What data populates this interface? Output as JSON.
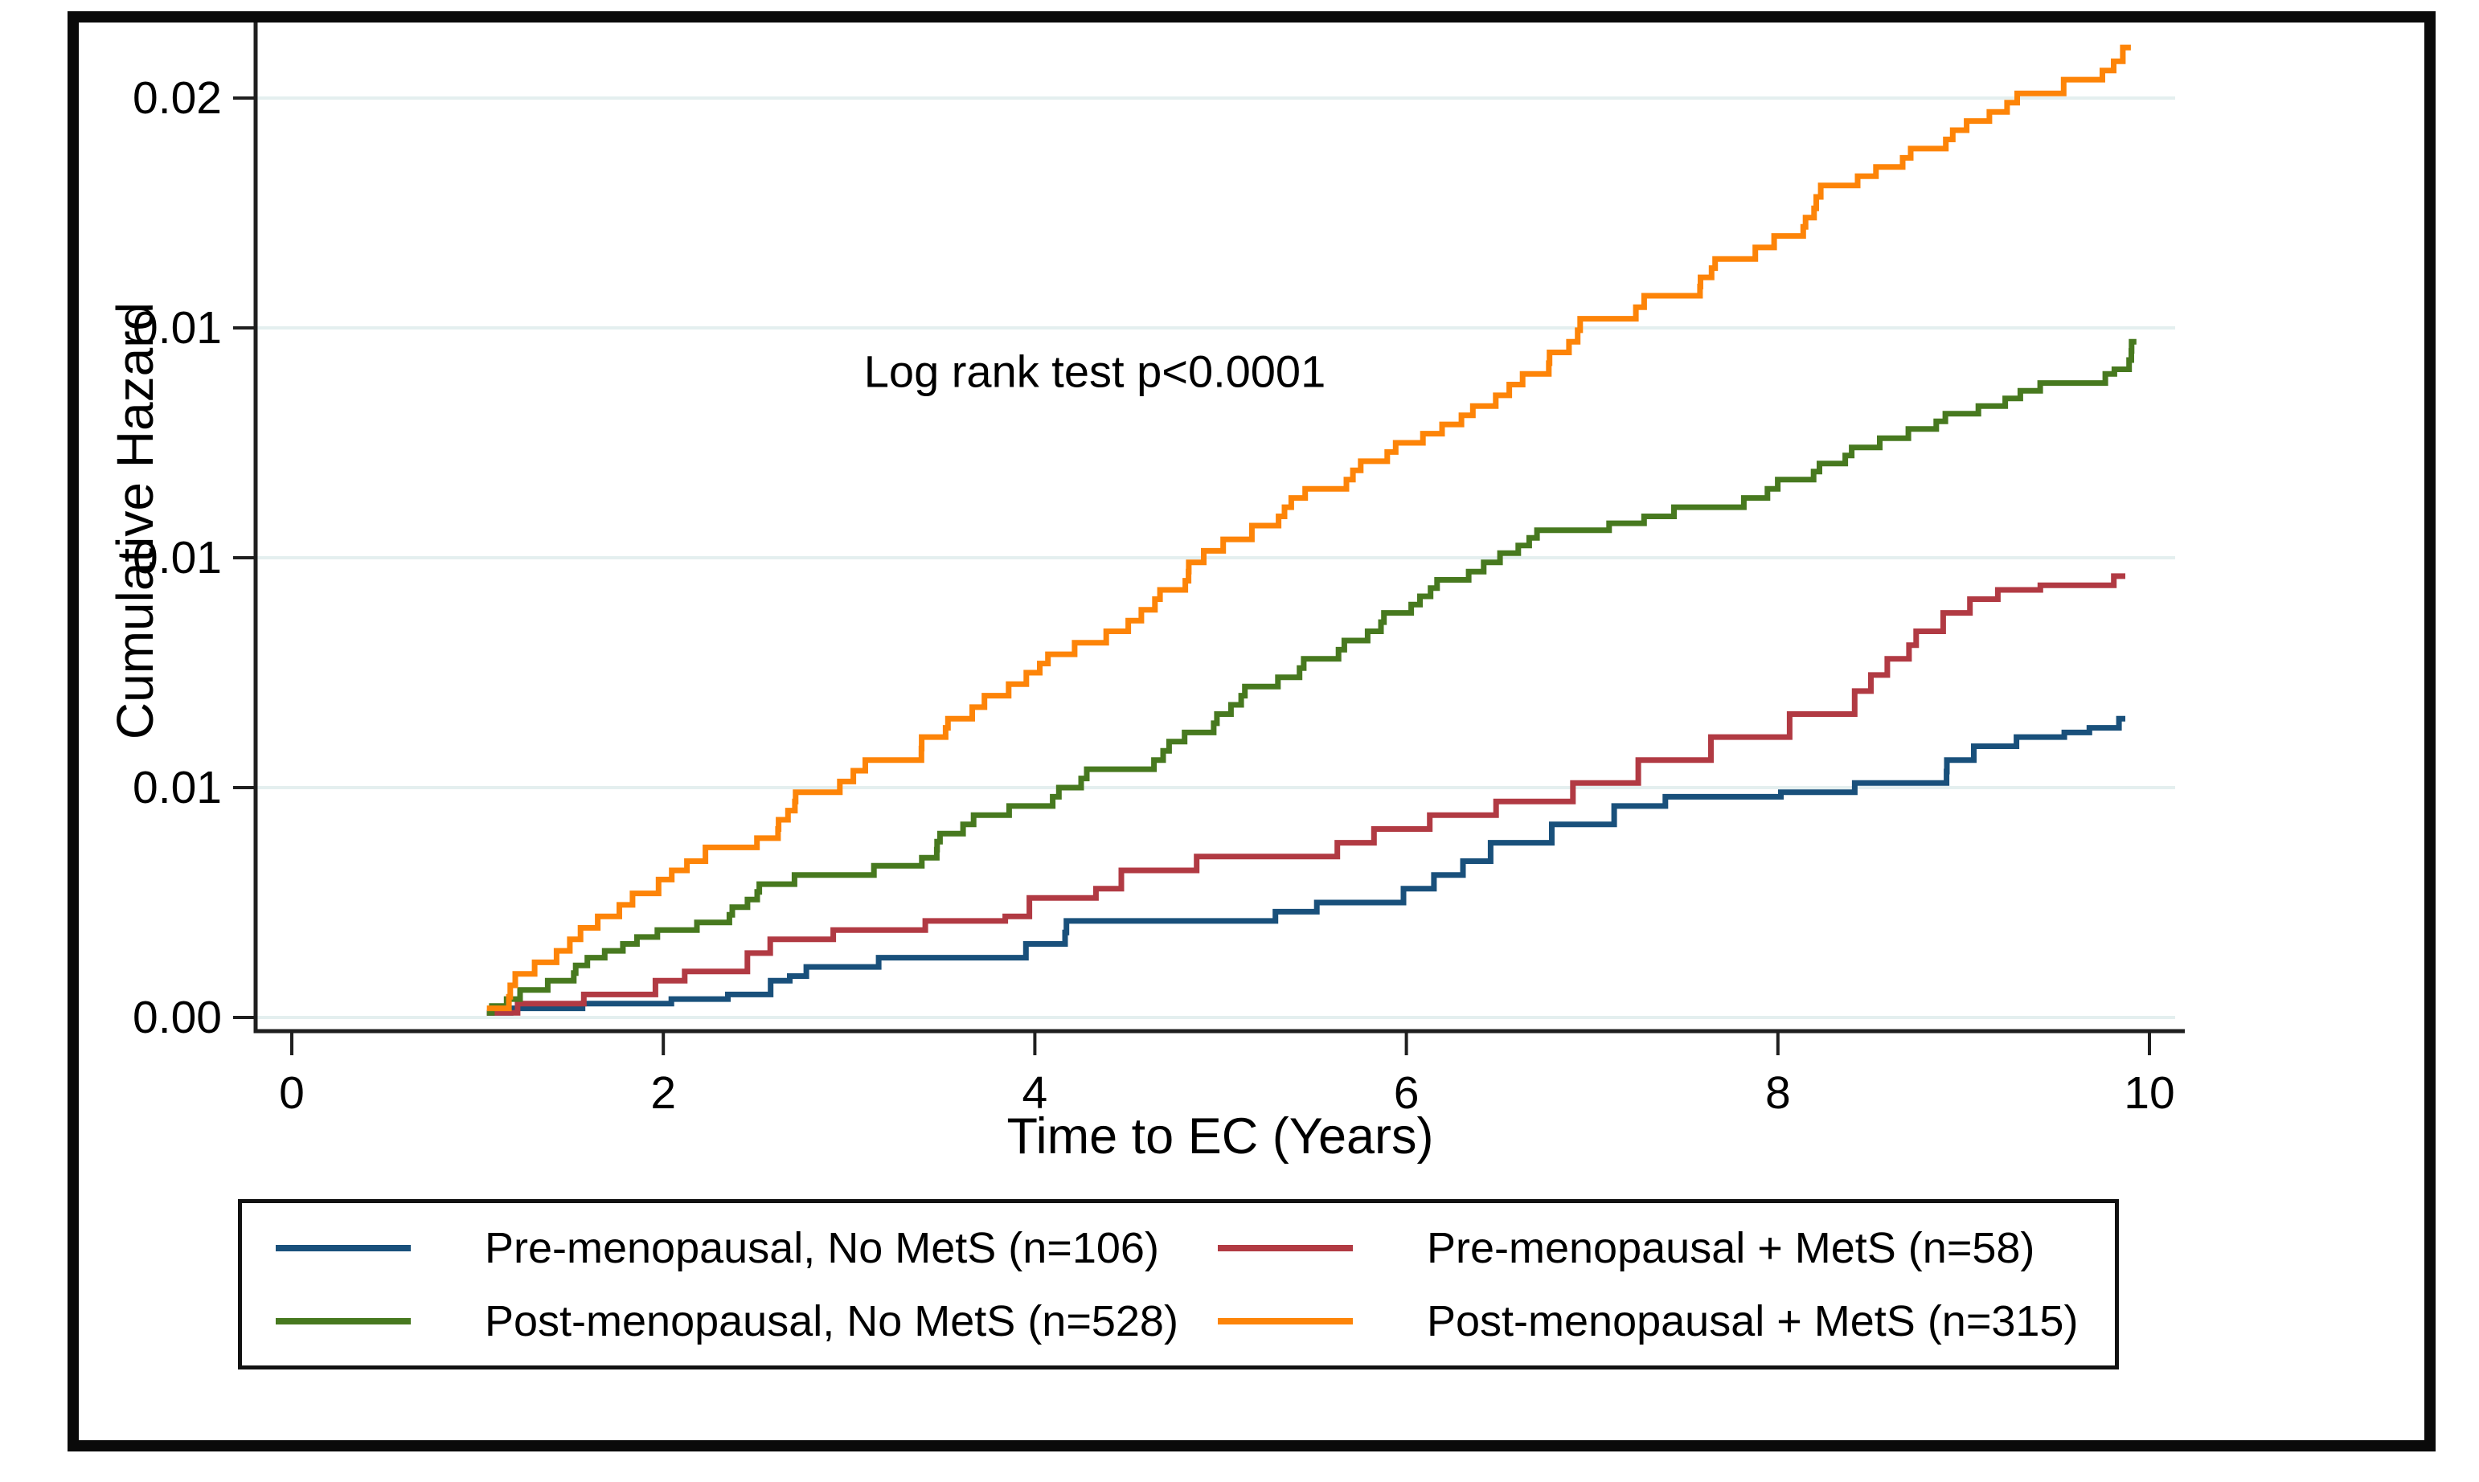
{
  "chart_data": {
    "type": "line",
    "subtype": "step-function-cumulative-hazard",
    "title": "",
    "xlabel": "Time to EC (Years)",
    "ylabel": "Cumulative Hazard",
    "annotation": "Log rank test p<0.0001",
    "xlim": [
      -0.2,
      10.15
    ],
    "ylim": [
      -0.0003,
      0.0215
    ],
    "grid": true,
    "gridline_color": "#e4efef",
    "axis_color": "#1f1f1f",
    "background_color": "#ffffff",
    "x_ticks": [
      {
        "value": 0,
        "label": "0"
      },
      {
        "value": 2,
        "label": "2"
      },
      {
        "value": 4,
        "label": "4"
      },
      {
        "value": 6,
        "label": "6"
      },
      {
        "value": 8,
        "label": "8"
      },
      {
        "value": 10,
        "label": "10"
      }
    ],
    "y_ticks": [
      {
        "value": 0.0,
        "label": "0.00"
      },
      {
        "value": 0.005,
        "label": "0.01"
      },
      {
        "value": 0.01,
        "label": "0.01"
      },
      {
        "value": 0.015,
        "label": "0.01"
      },
      {
        "value": 0.02,
        "label": "0.02"
      }
    ],
    "legend_position": "bottom-box",
    "series": [
      {
        "name": "Pre-menopausal, No MetS (n=106)",
        "n": 106,
        "color": "#19507b",
        "step_size": 0.00028,
        "points": [
          [
            1.05,
            0.0001
          ],
          [
            1.3,
            0.0002
          ],
          [
            1.8,
            0.0003
          ],
          [
            2.2,
            0.0004
          ],
          [
            2.45,
            0.0005
          ],
          [
            2.6,
            0.0008
          ],
          [
            2.75,
            0.0009
          ],
          [
            3.0,
            0.0011
          ],
          [
            3.3,
            0.0013
          ],
          [
            3.8,
            0.0013
          ],
          [
            4.05,
            0.0016
          ],
          [
            4.3,
            0.0021
          ],
          [
            5.0,
            0.0021
          ],
          [
            5.35,
            0.0023
          ],
          [
            5.75,
            0.0025
          ],
          [
            6.1,
            0.0028
          ],
          [
            6.4,
            0.0034
          ],
          [
            6.7,
            0.0038
          ],
          [
            7.0,
            0.0042
          ],
          [
            7.3,
            0.0046
          ],
          [
            7.55,
            0.0048
          ],
          [
            8.35,
            0.0049
          ],
          [
            8.85,
            0.0051
          ],
          [
            8.95,
            0.0056
          ],
          [
            9.2,
            0.0059
          ],
          [
            9.3,
            0.0061
          ],
          [
            9.6,
            0.0062
          ],
          [
            9.7,
            0.0063
          ],
          [
            9.82,
            0.0063
          ],
          [
            9.87,
            0.0065
          ]
        ]
      },
      {
        "name": "Pre-menopausal + MetS (n=58)",
        "n": 58,
        "color": "#b13a43",
        "step_size": 0.00035,
        "points": [
          [
            1.05,
            0.0001
          ],
          [
            1.5,
            0.0003
          ],
          [
            1.75,
            0.0005
          ],
          [
            2.0,
            0.0008
          ],
          [
            2.3,
            0.001
          ],
          [
            2.5,
            0.0014
          ],
          [
            2.8,
            0.0017
          ],
          [
            3.1,
            0.0019
          ],
          [
            3.5,
            0.0021
          ],
          [
            3.95,
            0.0022
          ],
          [
            4.2,
            0.0026
          ],
          [
            4.45,
            0.0028
          ],
          [
            4.8,
            0.0032
          ],
          [
            5.2,
            0.0035
          ],
          [
            5.65,
            0.0038
          ],
          [
            6.0,
            0.0041
          ],
          [
            6.3,
            0.0044
          ],
          [
            6.8,
            0.0047
          ],
          [
            7.2,
            0.0051
          ],
          [
            7.6,
            0.0056
          ],
          [
            7.9,
            0.0061
          ],
          [
            8.15,
            0.0066
          ],
          [
            8.45,
            0.0071
          ],
          [
            8.65,
            0.0078
          ],
          [
            8.85,
            0.0084
          ],
          [
            9.0,
            0.0088
          ],
          [
            9.15,
            0.0091
          ],
          [
            9.4,
            0.0093
          ],
          [
            9.55,
            0.0094
          ],
          [
            9.8,
            0.0094
          ],
          [
            9.87,
            0.0096
          ]
        ]
      },
      {
        "name": "Post-menopausal, No MetS (n=528)",
        "n": 528,
        "color": "#47791f",
        "step_size": 0.00018,
        "points": [
          [
            1.05,
            0.0001
          ],
          [
            1.2,
            0.0004
          ],
          [
            1.4,
            0.0008
          ],
          [
            1.65,
            0.0013
          ],
          [
            1.85,
            0.0016
          ],
          [
            2.05,
            0.0019
          ],
          [
            2.4,
            0.0024
          ],
          [
            2.7,
            0.0029
          ],
          [
            2.95,
            0.0031
          ],
          [
            3.35,
            0.0033
          ],
          [
            3.6,
            0.004
          ],
          [
            3.85,
            0.0044
          ],
          [
            4.1,
            0.0048
          ],
          [
            4.4,
            0.0054
          ],
          [
            4.75,
            0.006
          ],
          [
            5.1,
            0.0068
          ],
          [
            5.4,
            0.0074
          ],
          [
            5.7,
            0.0082
          ],
          [
            6.0,
            0.0088
          ],
          [
            6.35,
            0.0097
          ],
          [
            6.6,
            0.0101
          ],
          [
            7.0,
            0.0106
          ],
          [
            7.4,
            0.0109
          ],
          [
            7.7,
            0.0111
          ],
          [
            8.0,
            0.0117
          ],
          [
            8.4,
            0.0124
          ],
          [
            8.8,
            0.0128
          ],
          [
            9.2,
            0.0133
          ],
          [
            9.55,
            0.0138
          ],
          [
            9.8,
            0.014
          ],
          [
            9.88,
            0.0141
          ],
          [
            9.93,
            0.0147
          ]
        ]
      },
      {
        "name": "Post-menopausal +  MetS (n=315)",
        "n": 315,
        "color": "#fd8408",
        "step_size": 0.00022,
        "points": [
          [
            1.05,
            0.0002
          ],
          [
            1.2,
            0.0007
          ],
          [
            1.35,
            0.0012
          ],
          [
            1.5,
            0.0017
          ],
          [
            1.65,
            0.0022
          ],
          [
            1.85,
            0.0027
          ],
          [
            2.0,
            0.003
          ],
          [
            2.2,
            0.0034
          ],
          [
            2.4,
            0.0037
          ],
          [
            2.65,
            0.0043
          ],
          [
            2.9,
            0.0049
          ],
          [
            3.15,
            0.0056
          ],
          [
            3.4,
            0.0061
          ],
          [
            3.6,
            0.0065
          ],
          [
            3.8,
            0.007
          ],
          [
            4.0,
            0.0075
          ],
          [
            4.2,
            0.0079
          ],
          [
            4.4,
            0.0084
          ],
          [
            4.65,
            0.0091
          ],
          [
            4.9,
            0.0099
          ],
          [
            5.1,
            0.0104
          ],
          [
            5.3,
            0.0107
          ],
          [
            5.55,
            0.0115
          ],
          [
            5.8,
            0.0121
          ],
          [
            6.0,
            0.0125
          ],
          [
            6.2,
            0.0129
          ],
          [
            6.4,
            0.0133
          ],
          [
            6.65,
            0.014
          ],
          [
            6.9,
            0.0147
          ],
          [
            7.15,
            0.0152
          ],
          [
            7.4,
            0.0157
          ],
          [
            7.6,
            0.0161
          ],
          [
            7.8,
            0.0165
          ],
          [
            8.0,
            0.017
          ],
          [
            8.2,
            0.0176
          ],
          [
            8.4,
            0.0181
          ],
          [
            8.6,
            0.0185
          ],
          [
            8.8,
            0.0189
          ],
          [
            9.0,
            0.0193
          ],
          [
            9.2,
            0.0197
          ],
          [
            9.4,
            0.0201
          ],
          [
            9.6,
            0.0204
          ],
          [
            9.75,
            0.0206
          ],
          [
            9.85,
            0.0208
          ],
          [
            9.9,
            0.0211
          ]
        ]
      }
    ]
  },
  "legend": {
    "entries": [
      {
        "label": "Pre-menopausal, No MetS (n=106)",
        "color": "#19507b"
      },
      {
        "label": "Pre-menopausal + MetS (n=58)",
        "color": "#b13a43"
      },
      {
        "label": "Post-menopausal, No MetS (n=528)",
        "color": "#47791f"
      },
      {
        "label": "Post-menopausal +  MetS (n=315)",
        "color": "#fd8408"
      }
    ]
  }
}
